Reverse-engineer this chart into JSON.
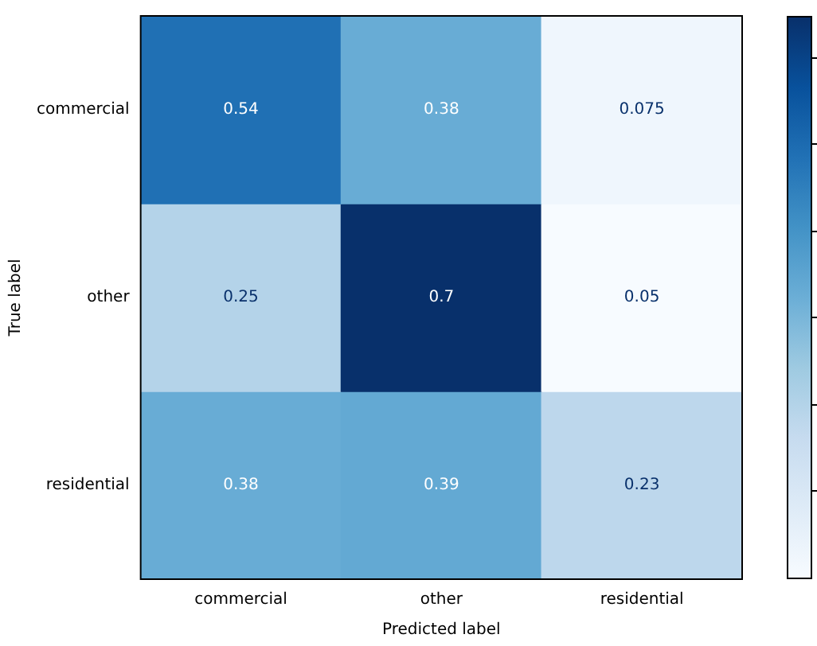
{
  "chart_data": {
    "type": "heatmap",
    "xlabel": "Predicted label",
    "ylabel": "True label",
    "categories": [
      "commercial",
      "other",
      "residential"
    ],
    "y_categories": [
      "commercial",
      "other",
      "residential"
    ],
    "cells": [
      [
        0.54,
        0.38,
        0.075
      ],
      [
        0.25,
        0.7,
        0.05
      ],
      [
        0.38,
        0.39,
        0.23
      ]
    ],
    "data_labels": true,
    "grid": false,
    "legend": false
  }
}
